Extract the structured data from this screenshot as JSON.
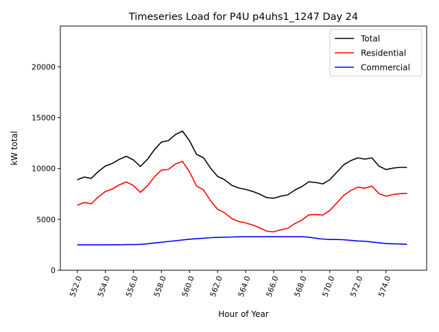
{
  "chart_data": {
    "type": "line",
    "title": "Timeseries Load for P4U p4uhs1_1247  Day 24",
    "xlabel": "Hour of Year",
    "ylabel": "kW total",
    "xlim": [
      550.8,
      576.9
    ],
    "ylim": [
      0,
      24000
    ],
    "xticks": [
      552,
      554,
      556,
      558,
      560,
      562,
      564,
      566,
      568,
      570,
      572,
      574
    ],
    "xtick_labels": [
      "552.0",
      "554.0",
      "556.0",
      "558.0",
      "560.0",
      "562.0",
      "564.0",
      "566.0",
      "568.0",
      "570.0",
      "572.0",
      "574.0"
    ],
    "yticks": [
      0,
      5000,
      10000,
      15000,
      20000
    ],
    "ytick_labels": [
      "0",
      "5000",
      "10000",
      "15000",
      "20000"
    ],
    "grid": false,
    "legend_position": "top-right",
    "x": [
      552,
      552.5,
      553,
      553.5,
      554,
      554.5,
      555,
      555.5,
      556,
      556.5,
      557,
      557.5,
      558,
      558.5,
      559,
      559.5,
      560,
      560.5,
      561,
      561.5,
      562,
      562.5,
      563,
      563.5,
      564,
      564.5,
      565,
      565.5,
      566,
      566.5,
      567,
      567.5,
      568,
      568.5,
      569,
      569.5,
      570,
      570.5,
      571,
      571.5,
      572,
      572.5,
      573,
      573.5,
      574,
      574.5,
      575,
      575.5
    ],
    "series": [
      {
        "name": "Total",
        "color": "#000000",
        "values": [
          8900,
          9160,
          9030,
          9700,
          10240,
          10500,
          10900,
          11200,
          10850,
          10200,
          10900,
          11860,
          12600,
          12740,
          13340,
          13680,
          12740,
          11390,
          11050,
          10040,
          9230,
          8900,
          8360,
          8090,
          7950,
          7750,
          7480,
          7140,
          7080,
          7280,
          7410,
          7880,
          8220,
          8690,
          8630,
          8490,
          8900,
          9640,
          10380,
          10780,
          11050,
          10920,
          11050,
          10240,
          9900,
          10040,
          10110,
          10110
        ]
      },
      {
        "name": "Residential",
        "color": "#ff0000",
        "values": [
          6400,
          6660,
          6530,
          7200,
          7740,
          7990,
          8390,
          8680,
          8330,
          7660,
          8300,
          9180,
          9850,
          9910,
          10440,
          10700,
          9690,
          8280,
          7900,
          6840,
          6000,
          5650,
          5090,
          4800,
          4650,
          4450,
          4180,
          3840,
          3780,
          3980,
          4110,
          4580,
          4920,
          5440,
          5480,
          5420,
          5880,
          6620,
          7380,
          7840,
          8170,
          8070,
          8270,
          7540,
          7280,
          7440,
          7530,
          7560
        ]
      },
      {
        "name": "Commercial",
        "color": "#0000ff",
        "values": [
          2500,
          2500,
          2500,
          2500,
          2500,
          2510,
          2510,
          2520,
          2520,
          2540,
          2600,
          2680,
          2750,
          2830,
          2900,
          2980,
          3050,
          3110,
          3150,
          3200,
          3230,
          3250,
          3270,
          3290,
          3300,
          3300,
          3300,
          3300,
          3300,
          3300,
          3300,
          3300,
          3300,
          3250,
          3150,
          3070,
          3020,
          3020,
          3000,
          2940,
          2880,
          2850,
          2780,
          2700,
          2620,
          2600,
          2580,
          2550
        ]
      }
    ]
  }
}
